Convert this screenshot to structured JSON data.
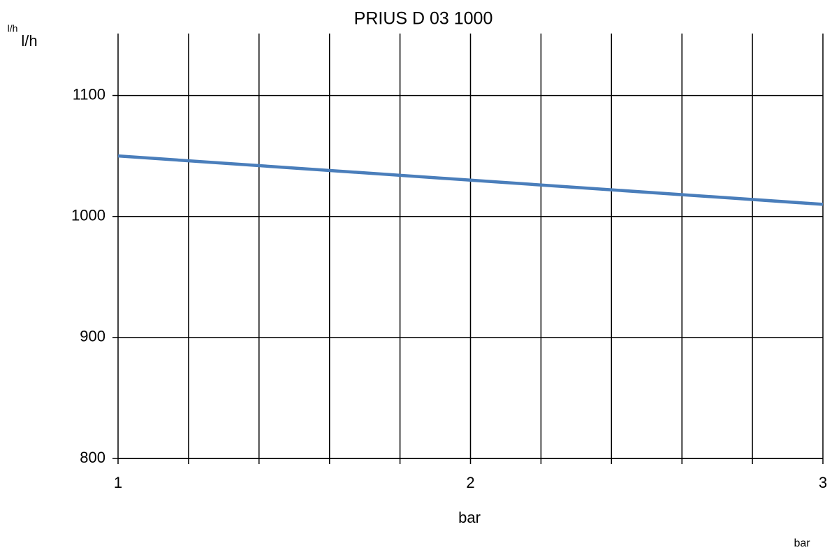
{
  "chart_data": {
    "type": "line",
    "title": "PRIUS D 03 1000",
    "y_label": "l/h",
    "x_label": "bar",
    "annotations": [
      "l/h",
      "bar"
    ],
    "x": [
      1,
      3
    ],
    "series": [
      {
        "name": "PRIUS D 03 1000",
        "color": "#4a7ebb",
        "values": [
          1050,
          1010
        ]
      }
    ],
    "xlim": [
      1,
      3
    ],
    "xticks": [
      1,
      2,
      3
    ],
    "xminor": [
      1.2,
      1.4,
      1.6,
      1.8,
      2.2,
      2.4,
      2.6,
      2.8
    ],
    "ylim": [
      800,
      1150
    ],
    "yticks": [
      800,
      900,
      1000,
      1100
    ],
    "grid": true,
    "legend": false
  }
}
